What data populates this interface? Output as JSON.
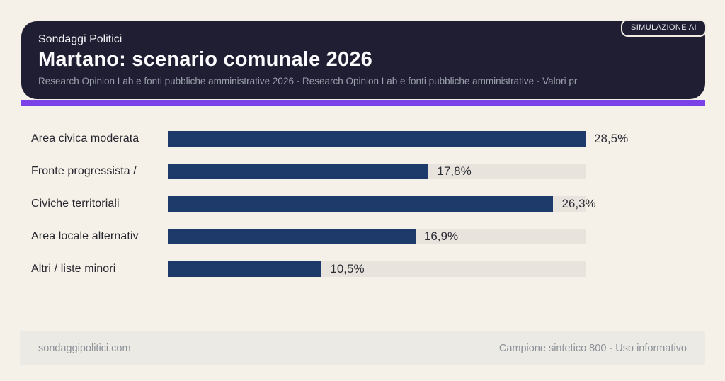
{
  "page": {
    "badge": "SIMULAZIONE AI",
    "brand": "Sondaggi Politici",
    "title": "Martano: scenario comunale 2026",
    "subtitle": "Research Opinion Lab e fonti pubbliche amministrative 2026 · Research Opinion Lab e fonti pubbliche amministrative · Valori pr",
    "footer_left": "sondaggipolitici.com",
    "footer_right": "Campione sintetico 800 · Uso informativo"
  },
  "colors": {
    "background": "#f5f0e8",
    "header_bg": "#201e32",
    "accent_purple": "#7c40e8",
    "bar_fill": "#1e3a6b",
    "bar_track": "#e8e4dd",
    "muted_text": "#8b9097"
  },
  "chart_data": {
    "type": "bar",
    "orientation": "horizontal",
    "title": "Martano: scenario comunale 2026",
    "xlabel": "",
    "ylabel": "",
    "categories": [
      "Area civica moderata",
      "Fronte progressista /",
      "Civiche territoriali",
      "Area locale alternativ",
      "Altri / liste minori"
    ],
    "values": [
      28.5,
      17.8,
      26.3,
      16.9,
      10.5
    ],
    "value_labels": [
      "28,5%",
      "17,8%",
      "26,3%",
      "16,9%",
      "10,5%"
    ],
    "max_value": 28.5,
    "xlim": [
      0,
      28.5
    ],
    "grid": false,
    "legend": false
  }
}
